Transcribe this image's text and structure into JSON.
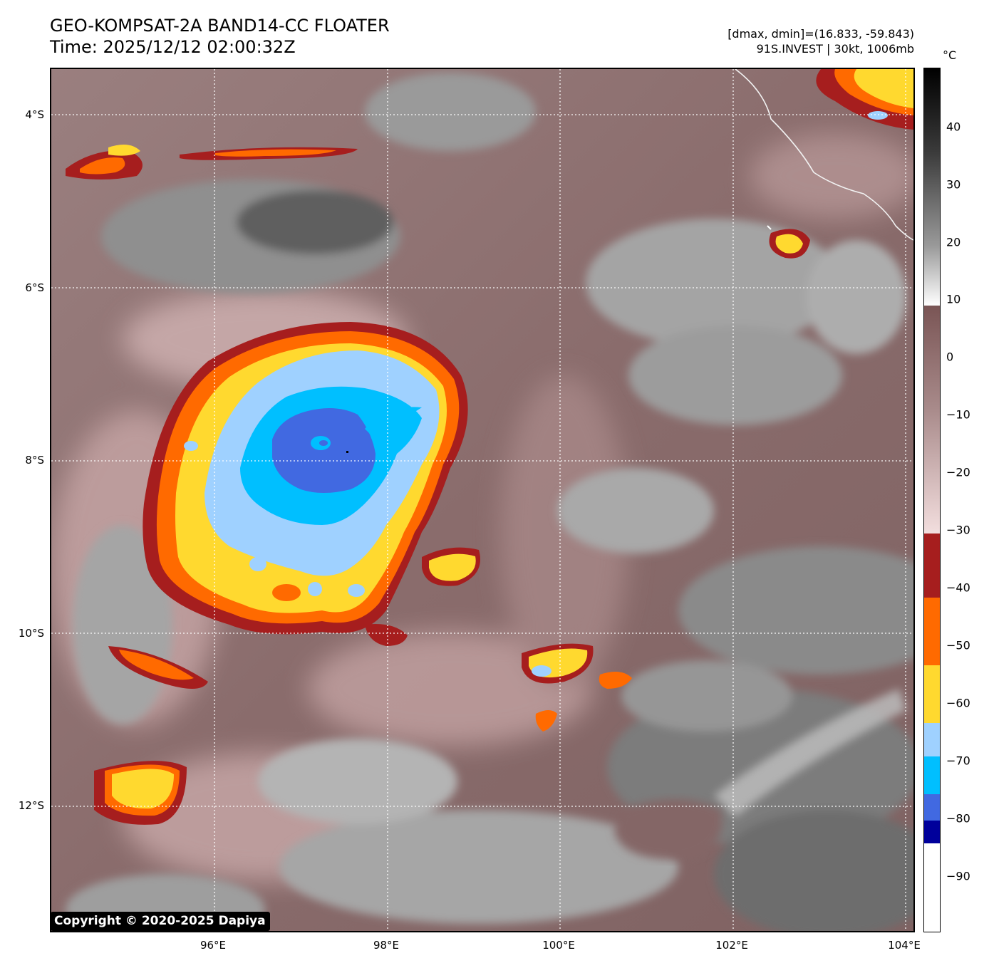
{
  "title": {
    "line1": "GEO-KOMPSAT-2A BAND14-CC FLOATER",
    "line2": "Time: 2025/12/12 02:00:32Z"
  },
  "info": {
    "range": "[dmax, dmin]=(16.833, -59.843)",
    "storm": "91S.INVEST | 30kt, 1006mb"
  },
  "colorbar": {
    "unit": "°C",
    "ticks": [
      "40",
      "30",
      "20",
      "10",
      "0",
      "−10",
      "−20",
      "−30",
      "−40",
      "−50",
      "−60",
      "−70",
      "−80",
      "−90"
    ],
    "colors": {
      "below_minus85": "#ffffff",
      "minus85_to_minus80": "#00009b",
      "minus80_to_minus75": "#4169e1",
      "minus75_to_minus70": "#00bfff",
      "minus70_to_minus64": "#9fd1ff",
      "minus64_to_minus52": "#ffd92f",
      "minus52_to_minus41": "#ff6a00",
      "minus41_to_minus31": "#a61e1e",
      "warm_low": "#f2dede",
      "warm_high": "#7a5555",
      "gray_low": "#ffffff",
      "gray_high": "#000000"
    }
  },
  "axes": {
    "lat_labels": [
      "4°S",
      "6°S",
      "8°S",
      "10°S",
      "12°S"
    ],
    "lon_labels": [
      "96°E",
      "98°E",
      "100°E",
      "102°E",
      "104°E"
    ]
  },
  "copyright": "Copyright © 2020-2025 Dapiya"
}
